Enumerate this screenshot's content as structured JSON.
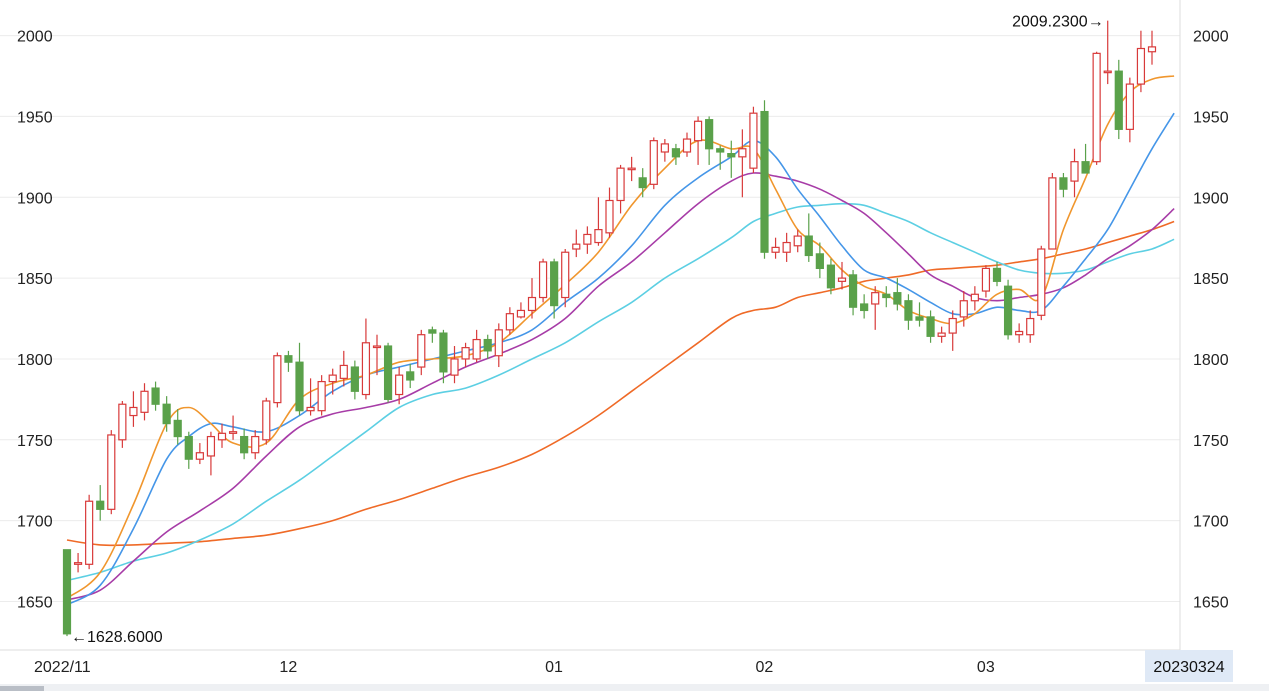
{
  "chart_data": {
    "type": "candlestick",
    "x_tick_labels": [
      "2022/11",
      "12",
      "01",
      "02",
      "03"
    ],
    "current_date_badge": "20230324",
    "y_ticks": [
      1650,
      1700,
      1750,
      1800,
      1850,
      1900,
      1950,
      2000
    ],
    "ylim": [
      1620,
      2022
    ],
    "grid": "horizontal",
    "annotations": {
      "max_label": "2009.2300→",
      "min_label": "←1628.6000"
    },
    "colors": {
      "up": "#d83a3a",
      "down": "#5aa14a",
      "ma5": "#f0962d",
      "ma10": "#4596e8",
      "ma20": "#a73ca7",
      "ma30": "#5ccfe3",
      "ma60": "#ef6a27",
      "grid": "#ececec",
      "badge": "#dfe9f6"
    },
    "candles": [
      [
        1682,
        1630,
        1682,
        1628.6
      ],
      [
        1673,
        1674,
        1680,
        1668
      ],
      [
        1673,
        1712,
        1716,
        1670
      ],
      [
        1712,
        1707,
        1722,
        1700
      ],
      [
        1707,
        1753,
        1756,
        1704
      ],
      [
        1750,
        1772,
        1774,
        1745
      ],
      [
        1765,
        1770,
        1780,
        1758
      ],
      [
        1767,
        1780,
        1785,
        1762
      ],
      [
        1782,
        1772,
        1786,
        1768
      ],
      [
        1772,
        1760,
        1777,
        1755
      ],
      [
        1762,
        1752,
        1769,
        1747
      ],
      [
        1752,
        1738,
        1755,
        1732
      ],
      [
        1738,
        1742,
        1748,
        1735
      ],
      [
        1740,
        1752,
        1755,
        1728
      ],
      [
        1750,
        1754,
        1760,
        1745
      ],
      [
        1754,
        1755,
        1765,
        1750
      ],
      [
        1752,
        1742,
        1757,
        1738
      ],
      [
        1742,
        1752,
        1756,
        1738
      ],
      [
        1750,
        1774,
        1776,
        1747
      ],
      [
        1773,
        1802,
        1804,
        1770
      ],
      [
        1802,
        1798,
        1805,
        1792
      ],
      [
        1798,
        1768,
        1810,
        1765
      ],
      [
        1768,
        1770,
        1788,
        1765
      ],
      [
        1768,
        1786,
        1790,
        1765
      ],
      [
        1786,
        1790,
        1794,
        1778
      ],
      [
        1788,
        1796,
        1805,
        1783
      ],
      [
        1795,
        1780,
        1799,
        1775
      ],
      [
        1778,
        1810,
        1825,
        1775
      ],
      [
        1808,
        1808,
        1815,
        1790
      ],
      [
        1808,
        1775,
        1810,
        1773
      ],
      [
        1778,
        1790,
        1795,
        1772
      ],
      [
        1792,
        1787,
        1797,
        1782
      ],
      [
        1795,
        1815,
        1818,
        1790
      ],
      [
        1818,
        1816,
        1820,
        1810
      ],
      [
        1816,
        1792,
        1818,
        1785
      ],
      [
        1790,
        1800,
        1808,
        1785
      ],
      [
        1800,
        1807,
        1810,
        1795
      ],
      [
        1800,
        1812,
        1818,
        1798
      ],
      [
        1812,
        1805,
        1815,
        1800
      ],
      [
        1802,
        1818,
        1822,
        1795
      ],
      [
        1818,
        1828,
        1832,
        1815
      ],
      [
        1826,
        1830,
        1835,
        1825
      ],
      [
        1830,
        1838,
        1850,
        1825
      ],
      [
        1838,
        1860,
        1862,
        1835
      ],
      [
        1860,
        1833,
        1862,
        1825
      ],
      [
        1838,
        1866,
        1868,
        1832
      ],
      [
        1868,
        1871,
        1880,
        1863
      ],
      [
        1871,
        1877,
        1882,
        1865
      ],
      [
        1872,
        1880,
        1900,
        1870
      ],
      [
        1878,
        1898,
        1906,
        1875
      ],
      [
        1898,
        1918,
        1920,
        1890
      ],
      [
        1918,
        1918,
        1925,
        1910
      ],
      [
        1912,
        1906,
        1918,
        1900
      ],
      [
        1908,
        1935,
        1937,
        1905
      ],
      [
        1928,
        1933,
        1936,
        1922
      ],
      [
        1930,
        1925,
        1933,
        1920
      ],
      [
        1928,
        1936,
        1940,
        1925
      ],
      [
        1935,
        1947,
        1950,
        1920
      ],
      [
        1948,
        1930,
        1950,
        1920
      ],
      [
        1930,
        1928,
        1932,
        1917
      ],
      [
        1927,
        1925,
        1935,
        1912
      ],
      [
        1925,
        1930,
        1942,
        1900
      ],
      [
        1918,
        1952,
        1956,
        1915
      ],
      [
        1953,
        1866,
        1960,
        1862
      ],
      [
        1866,
        1869,
        1875,
        1862
      ],
      [
        1866,
        1872,
        1878,
        1860
      ],
      [
        1870,
        1876,
        1880,
        1866
      ],
      [
        1876,
        1864,
        1890,
        1860
      ],
      [
        1865,
        1856,
        1872,
        1850
      ],
      [
        1858,
        1844,
        1862,
        1840
      ],
      [
        1848,
        1850,
        1860,
        1843
      ],
      [
        1852,
        1832,
        1855,
        1827
      ],
      [
        1834,
        1830,
        1840,
        1825
      ],
      [
        1834,
        1841,
        1845,
        1818
      ],
      [
        1840,
        1838,
        1845,
        1832
      ],
      [
        1841,
        1834,
        1850,
        1830
      ],
      [
        1836,
        1824,
        1840,
        1818
      ],
      [
        1826,
        1824,
        1835,
        1820
      ],
      [
        1826,
        1814,
        1830,
        1810
      ],
      [
        1814,
        1816,
        1820,
        1810
      ],
      [
        1816,
        1825,
        1830,
        1805
      ],
      [
        1826,
        1836,
        1842,
        1820
      ],
      [
        1836,
        1840,
        1845,
        1830
      ],
      [
        1842,
        1856,
        1858,
        1838
      ],
      [
        1856,
        1848,
        1860,
        1845
      ],
      [
        1845,
        1815,
        1849,
        1812
      ],
      [
        1815,
        1817,
        1822,
        1810
      ],
      [
        1815,
        1825,
        1830,
        1810
      ],
      [
        1827,
        1868,
        1870,
        1824
      ],
      [
        1868,
        1912,
        1915,
        1870
      ],
      [
        1912,
        1905,
        1915,
        1900
      ],
      [
        1910,
        1922,
        1930,
        1900
      ],
      [
        1922,
        1915,
        1933,
        1915
      ],
      [
        1922,
        1989,
        1990,
        1920
      ],
      [
        1978,
        1978,
        2009.23,
        1970
      ],
      [
        1978,
        1942,
        1985,
        1936
      ],
      [
        1942,
        1970,
        1974,
        1934
      ],
      [
        1970,
        1992,
        2003,
        1965
      ],
      [
        1990,
        1993,
        2003,
        1982
      ]
    ],
    "ma5": [
      [
        0,
        1652
      ],
      [
        3,
        1668
      ],
      [
        6,
        1710
      ],
      [
        9,
        1760
      ],
      [
        11,
        1770
      ],
      [
        13,
        1760
      ],
      [
        15,
        1748
      ],
      [
        18,
        1748
      ],
      [
        21,
        1775
      ],
      [
        24,
        1785
      ],
      [
        27,
        1790
      ],
      [
        30,
        1798
      ],
      [
        33,
        1800
      ],
      [
        36,
        1802
      ],
      [
        39,
        1810
      ],
      [
        42,
        1828
      ],
      [
        45,
        1846
      ],
      [
        48,
        1866
      ],
      [
        51,
        1895
      ],
      [
        54,
        1918
      ],
      [
        57,
        1935
      ],
      [
        60,
        1930
      ],
      [
        62,
        1930
      ],
      [
        64,
        1905
      ],
      [
        66,
        1880
      ],
      [
        68,
        1870
      ],
      [
        70,
        1855
      ],
      [
        72,
        1845
      ],
      [
        74,
        1840
      ],
      [
        76,
        1830
      ],
      [
        78,
        1825
      ],
      [
        80,
        1822
      ],
      [
        82,
        1828
      ],
      [
        84,
        1840
      ],
      [
        86,
        1843
      ],
      [
        88,
        1838
      ],
      [
        90,
        1880
      ],
      [
        92,
        1912
      ],
      [
        94,
        1945
      ],
      [
        96,
        1965
      ],
      [
        98,
        1973
      ],
      [
        100,
        1975
      ]
    ],
    "ma10": [
      [
        0,
        1648
      ],
      [
        3,
        1660
      ],
      [
        6,
        1695
      ],
      [
        9,
        1738
      ],
      [
        11,
        1752
      ],
      [
        13,
        1760
      ],
      [
        15,
        1758
      ],
      [
        18,
        1755
      ],
      [
        21,
        1765
      ],
      [
        24,
        1780
      ],
      [
        27,
        1790
      ],
      [
        30,
        1795
      ],
      [
        33,
        1800
      ],
      [
        36,
        1805
      ],
      [
        39,
        1810
      ],
      [
        42,
        1818
      ],
      [
        45,
        1835
      ],
      [
        48,
        1850
      ],
      [
        51,
        1870
      ],
      [
        54,
        1895
      ],
      [
        57,
        1912
      ],
      [
        60,
        1925
      ],
      [
        62,
        1935
      ],
      [
        64,
        1925
      ],
      [
        66,
        1905
      ],
      [
        68,
        1888
      ],
      [
        70,
        1870
      ],
      [
        72,
        1855
      ],
      [
        74,
        1850
      ],
      [
        76,
        1843
      ],
      [
        78,
        1835
      ],
      [
        80,
        1828
      ],
      [
        82,
        1828
      ],
      [
        84,
        1832
      ],
      [
        86,
        1830
      ],
      [
        88,
        1830
      ],
      [
        90,
        1845
      ],
      [
        92,
        1862
      ],
      [
        94,
        1880
      ],
      [
        96,
        1905
      ],
      [
        98,
        1930
      ],
      [
        100,
        1952
      ]
    ],
    "ma20": [
      [
        0,
        1651
      ],
      [
        3,
        1657
      ],
      [
        6,
        1675
      ],
      [
        9,
        1693
      ],
      [
        12,
        1706
      ],
      [
        15,
        1720
      ],
      [
        18,
        1740
      ],
      [
        21,
        1758
      ],
      [
        24,
        1766
      ],
      [
        27,
        1770
      ],
      [
        30,
        1775
      ],
      [
        33,
        1785
      ],
      [
        36,
        1795
      ],
      [
        39,
        1803
      ],
      [
        42,
        1812
      ],
      [
        45,
        1825
      ],
      [
        48,
        1845
      ],
      [
        51,
        1860
      ],
      [
        54,
        1878
      ],
      [
        57,
        1896
      ],
      [
        60,
        1910
      ],
      [
        62,
        1915
      ],
      [
        64,
        1913
      ],
      [
        66,
        1910
      ],
      [
        68,
        1905
      ],
      [
        70,
        1898
      ],
      [
        72,
        1890
      ],
      [
        74,
        1878
      ],
      [
        76,
        1865
      ],
      [
        78,
        1852
      ],
      [
        80,
        1845
      ],
      [
        82,
        1838
      ],
      [
        84,
        1836
      ],
      [
        86,
        1838
      ],
      [
        88,
        1840
      ],
      [
        90,
        1844
      ],
      [
        92,
        1852
      ],
      [
        94,
        1862
      ],
      [
        96,
        1870
      ],
      [
        98,
        1880
      ],
      [
        100,
        1893
      ]
    ],
    "ma30": [
      [
        0,
        1663
      ],
      [
        3,
        1668
      ],
      [
        6,
        1675
      ],
      [
        9,
        1680
      ],
      [
        12,
        1688
      ],
      [
        15,
        1698
      ],
      [
        18,
        1712
      ],
      [
        21,
        1725
      ],
      [
        24,
        1740
      ],
      [
        27,
        1755
      ],
      [
        30,
        1770
      ],
      [
        33,
        1778
      ],
      [
        36,
        1782
      ],
      [
        39,
        1790
      ],
      [
        42,
        1800
      ],
      [
        45,
        1810
      ],
      [
        48,
        1823
      ],
      [
        51,
        1835
      ],
      [
        54,
        1850
      ],
      [
        57,
        1862
      ],
      [
        60,
        1875
      ],
      [
        62,
        1885
      ],
      [
        64,
        1890
      ],
      [
        66,
        1894
      ],
      [
        68,
        1895
      ],
      [
        70,
        1896
      ],
      [
        72,
        1895
      ],
      [
        74,
        1890
      ],
      [
        76,
        1885
      ],
      [
        78,
        1878
      ],
      [
        80,
        1872
      ],
      [
        82,
        1866
      ],
      [
        84,
        1860
      ],
      [
        86,
        1855
      ],
      [
        88,
        1853
      ],
      [
        90,
        1853
      ],
      [
        92,
        1855
      ],
      [
        94,
        1860
      ],
      [
        96,
        1865
      ],
      [
        98,
        1868
      ],
      [
        100,
        1874
      ]
    ],
    "ma60": [
      [
        0,
        1688
      ],
      [
        3,
        1685
      ],
      [
        6,
        1685
      ],
      [
        9,
        1686
      ],
      [
        12,
        1687
      ],
      [
        15,
        1689
      ],
      [
        18,
        1691
      ],
      [
        21,
        1695
      ],
      [
        24,
        1700
      ],
      [
        27,
        1707
      ],
      [
        30,
        1713
      ],
      [
        33,
        1720
      ],
      [
        36,
        1727
      ],
      [
        39,
        1733
      ],
      [
        42,
        1741
      ],
      [
        45,
        1752
      ],
      [
        48,
        1765
      ],
      [
        51,
        1780
      ],
      [
        54,
        1795
      ],
      [
        57,
        1810
      ],
      [
        60,
        1825
      ],
      [
        62,
        1830
      ],
      [
        64,
        1832
      ],
      [
        66,
        1838
      ],
      [
        68,
        1841
      ],
      [
        70,
        1844
      ],
      [
        72,
        1848
      ],
      [
        74,
        1850
      ],
      [
        76,
        1852
      ],
      [
        78,
        1855
      ],
      [
        80,
        1856
      ],
      [
        82,
        1857
      ],
      [
        84,
        1858
      ],
      [
        86,
        1860
      ],
      [
        88,
        1862
      ],
      [
        90,
        1865
      ],
      [
        92,
        1868
      ],
      [
        94,
        1872
      ],
      [
        96,
        1876
      ],
      [
        98,
        1880
      ],
      [
        100,
        1885
      ]
    ]
  }
}
